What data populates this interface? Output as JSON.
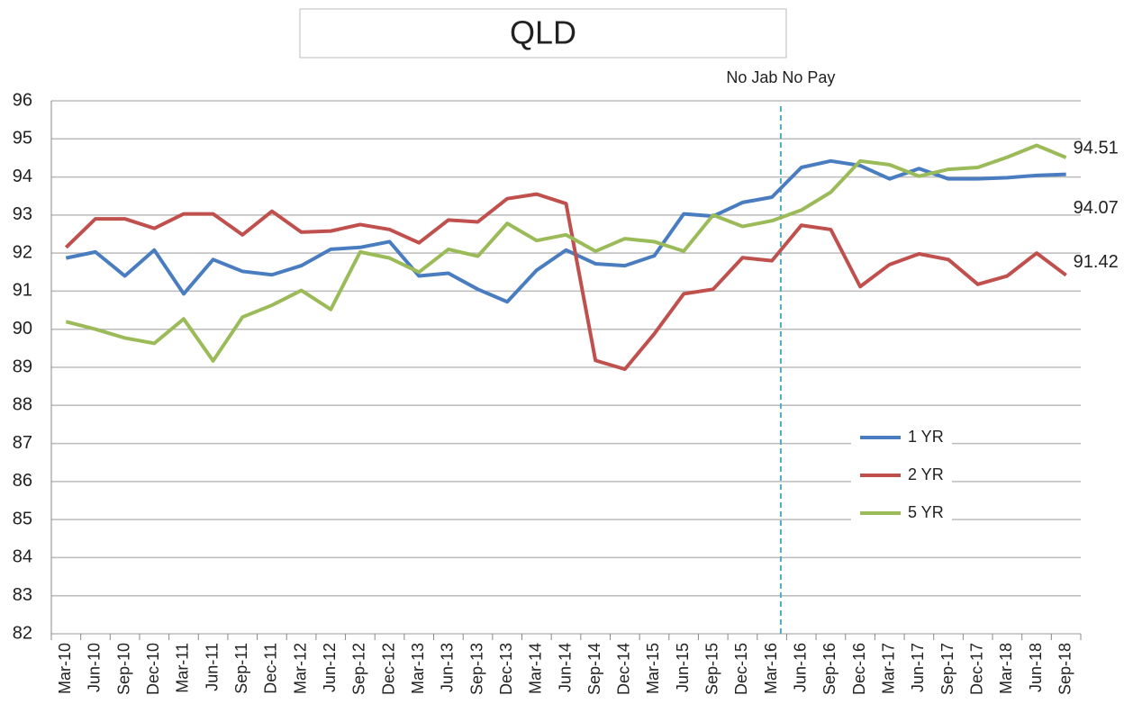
{
  "chart_data": {
    "type": "line",
    "title": "QLD",
    "categories": [
      "Mar-10",
      "Jun-10",
      "Sep-10",
      "Dec-10",
      "Mar-11",
      "Jun-11",
      "Sep-11",
      "Dec-11",
      "Mar-12",
      "Jun-12",
      "Sep-12",
      "Dec-12",
      "Mar-13",
      "Jun-13",
      "Sep-13",
      "Dec-13",
      "Mar-14",
      "Jun-14",
      "Sep-14",
      "Dec-14",
      "Mar-15",
      "Jun-15",
      "Sep-15",
      "Dec-15",
      "Mar-16",
      "Jun-16",
      "Sep-16",
      "Dec-16",
      "Mar-17",
      "Jun-17",
      "Sep-17",
      "Dec-17",
      "Mar-18",
      "Jun-18",
      "Sep-18"
    ],
    "series": [
      {
        "name": "1 YR",
        "color": "#4a7dc0",
        "values": [
          91.87,
          92.03,
          91.4,
          92.08,
          90.93,
          91.83,
          91.52,
          91.43,
          91.67,
          92.1,
          92.15,
          92.3,
          91.4,
          91.47,
          91.05,
          90.72,
          91.55,
          92.08,
          91.72,
          91.67,
          91.93,
          93.03,
          92.97,
          93.33,
          93.47,
          94.25,
          94.42,
          94.3,
          93.95,
          94.22,
          93.95,
          93.95,
          93.98,
          94.04,
          94.07
        ]
      },
      {
        "name": "2 YR",
        "color": "#c0504d",
        "values": [
          92.15,
          92.9,
          92.9,
          92.65,
          93.03,
          93.03,
          92.48,
          93.1,
          92.55,
          92.58,
          92.75,
          92.62,
          92.27,
          92.87,
          92.82,
          93.43,
          93.55,
          93.3,
          89.18,
          88.95,
          89.88,
          90.93,
          91.05,
          91.88,
          91.8,
          92.73,
          92.62,
          91.12,
          91.7,
          91.98,
          91.83,
          91.18,
          91.4,
          92.0,
          91.42
        ]
      },
      {
        "name": "5 YR",
        "color": "#9bbb59",
        "values": [
          90.2,
          90.0,
          89.77,
          89.63,
          90.27,
          89.17,
          90.32,
          90.63,
          91.02,
          90.52,
          92.03,
          91.87,
          91.5,
          92.1,
          91.92,
          92.78,
          92.33,
          92.48,
          92.05,
          92.38,
          92.3,
          92.05,
          93.0,
          92.7,
          92.85,
          93.13,
          93.6,
          94.42,
          94.32,
          94.02,
          94.2,
          94.25,
          94.52,
          94.83,
          94.51
        ]
      }
    ],
    "annotation": "No Jab No Pay",
    "ylim": [
      82,
      96
    ],
    "yticks": [
      82,
      83,
      84,
      85,
      86,
      87,
      88,
      89,
      90,
      91,
      92,
      93,
      94,
      95,
      96
    ],
    "grid": true,
    "legend": "right"
  }
}
